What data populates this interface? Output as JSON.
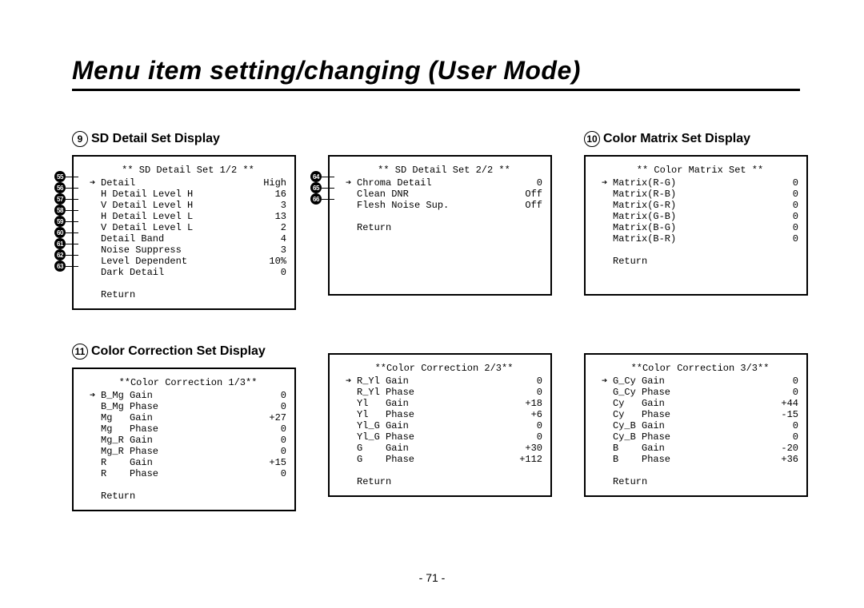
{
  "page_title": "Menu item setting/changing (User Mode)",
  "page_number": "- 71 -",
  "sections": {
    "sd_detail": {
      "num": "9",
      "label": "SD Detail Set Display"
    },
    "color_matrix": {
      "num": "10",
      "label": "Color Matrix Set Display"
    },
    "color_correction": {
      "num": "11",
      "label": "Color Correction Set Display"
    }
  },
  "panels": {
    "sd1": {
      "title": "** SD Detail Set 1/2 **",
      "pointer_index": 0,
      "rows": [
        {
          "label": "Detail",
          "val": "High"
        },
        {
          "label": "H Detail Level H",
          "val": "16"
        },
        {
          "label": "V Detail Level H",
          "val": "3"
        },
        {
          "label": "H Detail Level L",
          "val": "13"
        },
        {
          "label": "V Detail Level L",
          "val": "2"
        },
        {
          "label": "Detail Band",
          "val": "4"
        },
        {
          "label": "Noise Suppress",
          "val": "3"
        },
        {
          "label": "Level Dependent",
          "val": "10%"
        },
        {
          "label": "Dark Detail",
          "val": "0"
        }
      ],
      "return": "Return",
      "callouts": [
        "55",
        "56",
        "57",
        "58",
        "59",
        "60",
        "61",
        "62",
        "63"
      ]
    },
    "sd2": {
      "title": "** SD Detail Set 2/2 **",
      "pointer_index": 0,
      "rows": [
        {
          "label": "Chroma Detail",
          "val": "0"
        },
        {
          "label": "Clean DNR",
          "val": "Off"
        },
        {
          "label": "Flesh Noise Sup.",
          "val": "Off"
        }
      ],
      "return": "Return",
      "callouts": [
        "64",
        "65",
        "66"
      ]
    },
    "cm": {
      "title": "** Color Matrix Set **",
      "pointer_index": 0,
      "rows": [
        {
          "label": "Matrix(R-G)",
          "val": "0"
        },
        {
          "label": "Matrix(R-B)",
          "val": "0"
        },
        {
          "label": "Matrix(G-R)",
          "val": "0"
        },
        {
          "label": "Matrix(G-B)",
          "val": "0"
        },
        {
          "label": "Matrix(B-G)",
          "val": "0"
        },
        {
          "label": "Matrix(B-R)",
          "val": "0"
        }
      ],
      "return": "Return"
    },
    "cc1": {
      "title": "**Color Correction 1/3**",
      "pointer_index": 0,
      "rows": [
        {
          "label": "B_Mg Gain",
          "val": "0"
        },
        {
          "label": "B_Mg Phase",
          "val": "0"
        },
        {
          "label": "Mg   Gain",
          "val": "+27"
        },
        {
          "label": "Mg   Phase",
          "val": "0"
        },
        {
          "label": "Mg_R Gain",
          "val": "0"
        },
        {
          "label": "Mg_R Phase",
          "val": "0"
        },
        {
          "label": "R    Gain",
          "val": "+15"
        },
        {
          "label": "R    Phase",
          "val": "0"
        }
      ],
      "return": "Return"
    },
    "cc2": {
      "title": "**Color Correction 2/3**",
      "pointer_index": 0,
      "rows": [
        {
          "label": "R_Yl Gain",
          "val": "0"
        },
        {
          "label": "R_Yl Phase",
          "val": "0"
        },
        {
          "label": "Yl   Gain",
          "val": "+18"
        },
        {
          "label": "Yl   Phase",
          "val": "+6"
        },
        {
          "label": "Yl_G Gain",
          "val": "0"
        },
        {
          "label": "Yl_G Phase",
          "val": "0"
        },
        {
          "label": "G    Gain",
          "val": "+30"
        },
        {
          "label": "G    Phase",
          "val": "+112"
        }
      ],
      "return": "Return"
    },
    "cc3": {
      "title": "**Color Correction 3/3**",
      "pointer_index": 0,
      "rows": [
        {
          "label": "G_Cy Gain",
          "val": "0"
        },
        {
          "label": "G_Cy Phase",
          "val": "0"
        },
        {
          "label": "Cy   Gain",
          "val": "+44"
        },
        {
          "label": "Cy   Phase",
          "val": "-15"
        },
        {
          "label": "Cy_B Gain",
          "val": "0"
        },
        {
          "label": "Cy_B Phase",
          "val": "0"
        },
        {
          "label": "B    Gain",
          "val": "-20"
        },
        {
          "label": "B    Phase",
          "val": "+36"
        }
      ],
      "return": "Return"
    }
  }
}
